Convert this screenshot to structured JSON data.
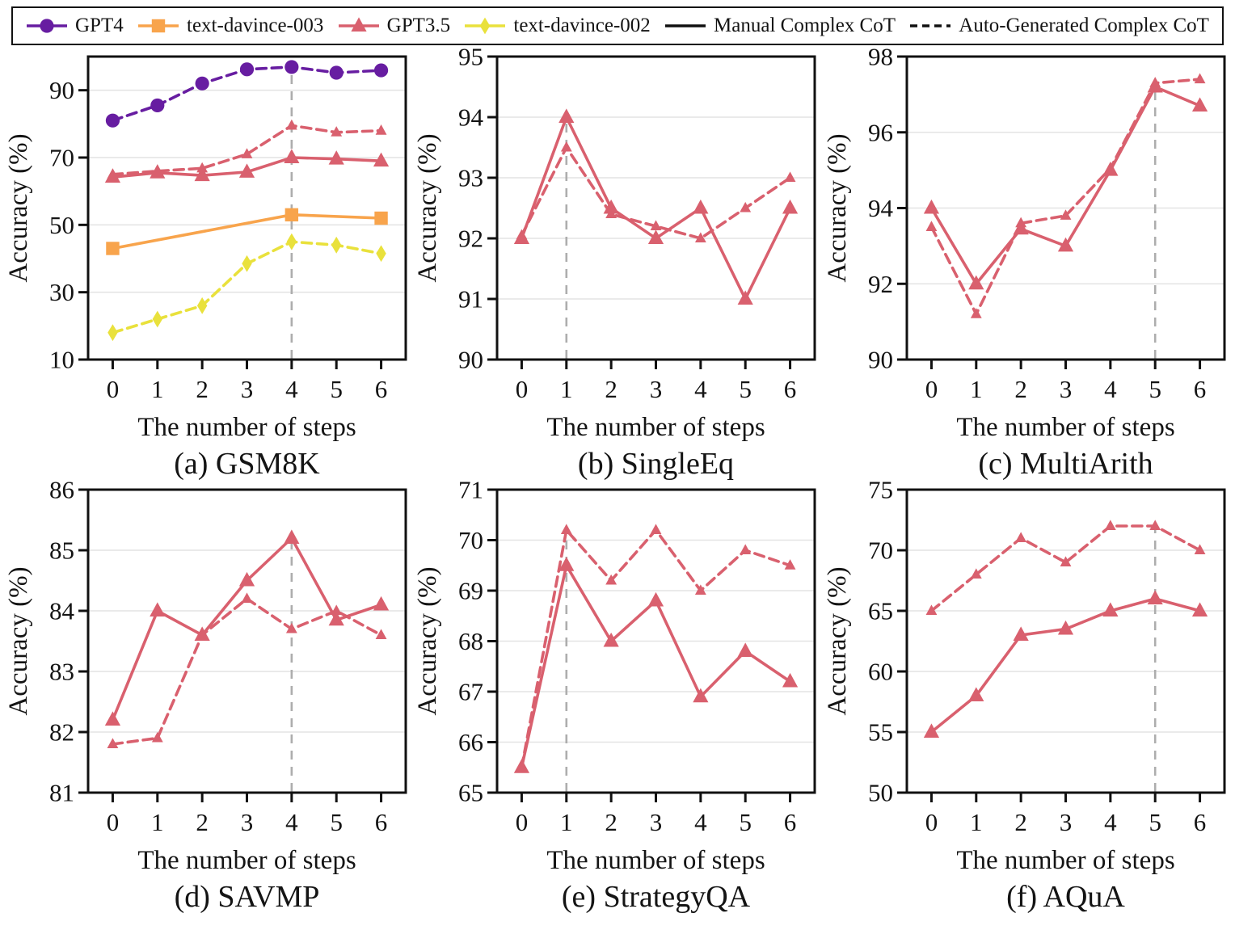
{
  "legend": {
    "items": [
      {
        "label": "GPT4",
        "marker": "circle",
        "color": "#671DA1",
        "linestyle": "solid"
      },
      {
        "label": "text-davince-003",
        "marker": "square",
        "color": "#F8A44C",
        "linestyle": "solid"
      },
      {
        "label": "GPT3.5",
        "marker": "triangle",
        "color": "#D9606E",
        "linestyle": "solid"
      },
      {
        "label": "text-davince-002",
        "marker": "diamond",
        "color": "#E9E13C",
        "linestyle": "solid"
      },
      {
        "label": "Manual Complex CoT",
        "marker": "none",
        "color": "#111111",
        "linestyle": "solid"
      },
      {
        "label": "Auto-Generated Complex CoT",
        "marker": "none",
        "color": "#111111",
        "linestyle": "dashed"
      }
    ]
  },
  "style_colors": {
    "grid": "#E4E4E4",
    "vline": "#ADADAD",
    "spine": "#111111",
    "text": "#141414"
  },
  "chart_data": [
    {
      "id": "gsm8k",
      "caption": "(a) GSM8K",
      "type": "line",
      "xlabel": "The number of steps",
      "ylabel": "Accuracy (%)",
      "x": [
        0,
        1,
        2,
        3,
        4,
        5,
        6
      ],
      "xlim": [
        -0.55,
        6.55
      ],
      "ylim": [
        10,
        100
      ],
      "yticks": [
        10,
        30,
        50,
        70,
        90
      ],
      "grid": true,
      "vline_x": 4,
      "legend_position": "figure-top",
      "series": [
        {
          "name": "GPT4",
          "cot": "Auto-Generated Complex CoT",
          "color": "#671DA1",
          "marker": "circle",
          "linestyle": "dashed",
          "values": [
            81,
            85.5,
            92,
            96.2,
            96.9,
            95.2,
            95.9
          ]
        },
        {
          "name": "GPT3.5",
          "cot": "Auto-Generated Complex CoT",
          "color": "#D9606E",
          "marker": "triangle",
          "linestyle": "dashed",
          "values": [
            65,
            66,
            66.8,
            71,
            79.5,
            77.5,
            78
          ]
        },
        {
          "name": "GPT3.5",
          "cot": "Manual Complex CoT",
          "color": "#D9606E",
          "marker": "triangle",
          "linestyle": "solid",
          "values": [
            64.2,
            65.5,
            64.7,
            65.7,
            70,
            69.6,
            69
          ]
        },
        {
          "name": "text-davince-003",
          "cot": "Manual Complex CoT",
          "color": "#F8A44C",
          "marker": "square",
          "linestyle": "solid",
          "values": [
            43,
            null,
            null,
            null,
            53,
            null,
            52
          ]
        },
        {
          "name": "text-davince-002",
          "cot": "Auto-Generated Complex CoT",
          "color": "#E9E13C",
          "marker": "diamond",
          "linestyle": "dashed",
          "values": [
            18,
            22,
            26,
            38.5,
            45,
            44,
            41.5
          ]
        }
      ]
    },
    {
      "id": "singleeq",
      "caption": "(b) SingleEq",
      "type": "line",
      "xlabel": "The number of steps",
      "ylabel": "Accuracy (%)",
      "x": [
        0,
        1,
        2,
        3,
        4,
        5,
        6
      ],
      "xlim": [
        -0.55,
        6.55
      ],
      "ylim": [
        90,
        95
      ],
      "yticks": [
        90,
        91,
        92,
        93,
        94,
        95
      ],
      "grid": true,
      "vline_x": 1,
      "legend_position": "figure-top",
      "series": [
        {
          "name": "GPT3.5",
          "cot": "Manual Complex CoT",
          "color": "#D9606E",
          "marker": "triangle",
          "linestyle": "solid",
          "values": [
            92,
            94,
            92.5,
            92,
            92.5,
            91,
            92.5
          ]
        },
        {
          "name": "GPT3.5",
          "cot": "Auto-Generated Complex CoT",
          "color": "#D9606E",
          "marker": "triangle",
          "linestyle": "dashed",
          "values": [
            92.05,
            93.5,
            92.4,
            92.2,
            92,
            92.5,
            93
          ]
        }
      ]
    },
    {
      "id": "multiarith",
      "caption": "(c) MultiArith",
      "type": "line",
      "xlabel": "The number of steps",
      "ylabel": "Accuracy (%)",
      "x": [
        0,
        1,
        2,
        3,
        4,
        5,
        6
      ],
      "xlim": [
        -0.55,
        6.55
      ],
      "ylim": [
        90,
        98
      ],
      "yticks": [
        90,
        92,
        94,
        96,
        98
      ],
      "grid": true,
      "vline_x": 5,
      "legend_position": "figure-top",
      "series": [
        {
          "name": "GPT3.5",
          "cot": "Manual Complex CoT",
          "color": "#D9606E",
          "marker": "triangle",
          "linestyle": "solid",
          "values": [
            94,
            92,
            93.45,
            93,
            95,
            97.2,
            96.7
          ]
        },
        {
          "name": "GPT3.5",
          "cot": "Auto-Generated Complex CoT",
          "color": "#D9606E",
          "marker": "triangle",
          "linestyle": "dashed",
          "values": [
            93.5,
            91.2,
            93.6,
            93.8,
            95.05,
            97.3,
            97.4
          ]
        }
      ]
    },
    {
      "id": "savmp",
      "caption": "(d) SAVMP",
      "type": "line",
      "xlabel": "The number of steps",
      "ylabel": "Accuracy (%)",
      "x": [
        0,
        1,
        2,
        3,
        4,
        5,
        6
      ],
      "xlim": [
        -0.55,
        6.55
      ],
      "ylim": [
        81,
        86
      ],
      "yticks": [
        81,
        82,
        83,
        84,
        85,
        86
      ],
      "grid": true,
      "vline_x": 4,
      "legend_position": "figure-top",
      "series": [
        {
          "name": "GPT3.5",
          "cot": "Manual Complex CoT",
          "color": "#D9606E",
          "marker": "triangle",
          "linestyle": "solid",
          "values": [
            82.2,
            84,
            83.6,
            84.5,
            85.2,
            83.85,
            84.1
          ]
        },
        {
          "name": "GPT3.5",
          "cot": "Auto-Generated Complex CoT",
          "color": "#D9606E",
          "marker": "triangle",
          "linestyle": "dashed",
          "values": [
            81.8,
            81.9,
            83.6,
            84.2,
            83.7,
            84,
            83.6
          ]
        }
      ]
    },
    {
      "id": "strategyqa",
      "caption": "(e) StrategyQA",
      "type": "line",
      "xlabel": "The number of steps",
      "ylabel": "Accuracy (%)",
      "x": [
        0,
        1,
        2,
        3,
        4,
        5,
        6
      ],
      "xlim": [
        -0.55,
        6.55
      ],
      "ylim": [
        65,
        71
      ],
      "yticks": [
        65,
        66,
        67,
        68,
        69,
        70,
        71
      ],
      "grid": true,
      "vline_x": 1,
      "legend_position": "figure-top",
      "series": [
        {
          "name": "GPT3.5",
          "cot": "Manual Complex CoT",
          "color": "#D9606E",
          "marker": "triangle",
          "linestyle": "solid",
          "values": [
            65.5,
            69.5,
            68,
            68.8,
            66.9,
            67.8,
            67.2
          ]
        },
        {
          "name": "GPT3.5",
          "cot": "Auto-Generated Complex CoT",
          "color": "#D9606E",
          "marker": "triangle",
          "linestyle": "dashed",
          "values": [
            65.5,
            70.2,
            69.2,
            70.2,
            69,
            69.8,
            69.5
          ]
        }
      ]
    },
    {
      "id": "aqua",
      "caption": "(f) AQuA",
      "type": "line",
      "xlabel": "The number of steps",
      "ylabel": "Accuracy (%)",
      "x": [
        0,
        1,
        2,
        3,
        4,
        5,
        6
      ],
      "xlim": [
        -0.55,
        6.55
      ],
      "ylim": [
        50,
        75
      ],
      "yticks": [
        50,
        55,
        60,
        65,
        70,
        75
      ],
      "grid": true,
      "vline_x": 5,
      "legend_position": "figure-top",
      "series": [
        {
          "name": "GPT3.5",
          "cot": "Manual Complex CoT",
          "color": "#D9606E",
          "marker": "triangle",
          "linestyle": "solid",
          "values": [
            55,
            58,
            63,
            63.5,
            65,
            66,
            65
          ]
        },
        {
          "name": "GPT3.5",
          "cot": "Auto-Generated Complex CoT",
          "color": "#D9606E",
          "marker": "triangle",
          "linestyle": "dashed",
          "values": [
            65,
            68,
            71,
            69,
            72,
            72,
            70
          ]
        }
      ]
    }
  ]
}
